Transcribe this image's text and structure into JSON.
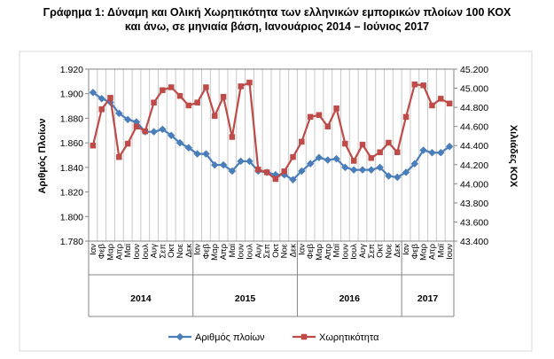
{
  "title": {
    "line1": "Γράφημα 1: Δύναμη και Ολική Χωρητικότητα των ελληνικών εμπορικών πλοίων 100 ΚΟΧ",
    "line2": "και άνω, σε μηνιαία βάση, Ιανουάριος  2014 – Ιούνιος 2017"
  },
  "chart_data": {
    "type": "line",
    "ylabel_left": "Αριθμός Πλοίων",
    "ylabel_right": "Χιλιάδες ΚΟΧ",
    "ylim_left": [
      1780,
      1920
    ],
    "ylim_right": [
      43400,
      45200
    ],
    "yticks_left": [
      "1.920",
      "1.900",
      "1.880",
      "1.860",
      "1.840",
      "1.820",
      "1.800",
      "1.780"
    ],
    "yticks_right": [
      "45.200",
      "45.000",
      "44.800",
      "44.600",
      "44.400",
      "44.200",
      "44.000",
      "43.800",
      "43.600",
      "43.400"
    ],
    "grid": "vertical",
    "legend_position": "bottom",
    "categories": [
      "Ιαν",
      "Φεβ",
      "Μαρ",
      "Απρ",
      "Μαϊ",
      "Ιουν",
      "Ιουλ",
      "Αυγ",
      "Σεπ",
      "Οκτ",
      "Νοε",
      "Δεκ",
      "Ιαν",
      "Φεβ",
      "Μαρ",
      "Απρ",
      "Μαϊ",
      "Ιουν",
      "Ιουλ",
      "Αυγ",
      "Σεπ",
      "Οκτ",
      "Νοε",
      "Δεκ",
      "Ιαν",
      "Φεβ",
      "Μαρ",
      "Απρ",
      "Μαϊ",
      "Ιουν",
      "Ιουλ",
      "Αυγ",
      "Σεπ",
      "Οκτ",
      "Νοε",
      "Δεκ",
      "Ιαν",
      "Φεβ",
      "Μαρ",
      "Απρ",
      "Μαϊ",
      "Ιουν"
    ],
    "years": [
      {
        "label": "2014",
        "start": 0,
        "count": 12
      },
      {
        "label": "2015",
        "start": 12,
        "count": 12
      },
      {
        "label": "2016",
        "start": 24,
        "count": 12
      },
      {
        "label": "2017",
        "start": 36,
        "count": 6
      }
    ],
    "series": [
      {
        "name": "Αριθμός πλοίων",
        "axis": "left",
        "color": "#4a7ebb",
        "marker": "diamond",
        "values": [
          1901,
          1896,
          1893,
          1884,
          1879,
          1877,
          1869,
          1869,
          1871,
          1866,
          1860,
          1856,
          1851,
          1851,
          1842,
          1842,
          1837,
          1845,
          1845,
          1837,
          1836,
          1834,
          1834,
          1830,
          1837,
          1843,
          1848,
          1846,
          1847,
          1840,
          1838,
          1838,
          1838,
          1840,
          1833,
          1832,
          1836,
          1843,
          1854,
          1852,
          1852,
          1857
        ]
      },
      {
        "name": "Χωρητικότητα",
        "axis": "right",
        "color": "#be4b48",
        "marker": "square",
        "values": [
          44400,
          44780,
          44900,
          44280,
          44420,
          44600,
          44550,
          44850,
          44980,
          45010,
          44920,
          44820,
          44850,
          45010,
          44710,
          44910,
          44490,
          45020,
          45060,
          44150,
          44120,
          44050,
          44130,
          44280,
          44440,
          44700,
          44720,
          44600,
          44790,
          44420,
          44240,
          44410,
          44270,
          44330,
          44430,
          44330,
          44700,
          45040,
          45030,
          44820,
          44890,
          44840
        ]
      }
    ]
  }
}
